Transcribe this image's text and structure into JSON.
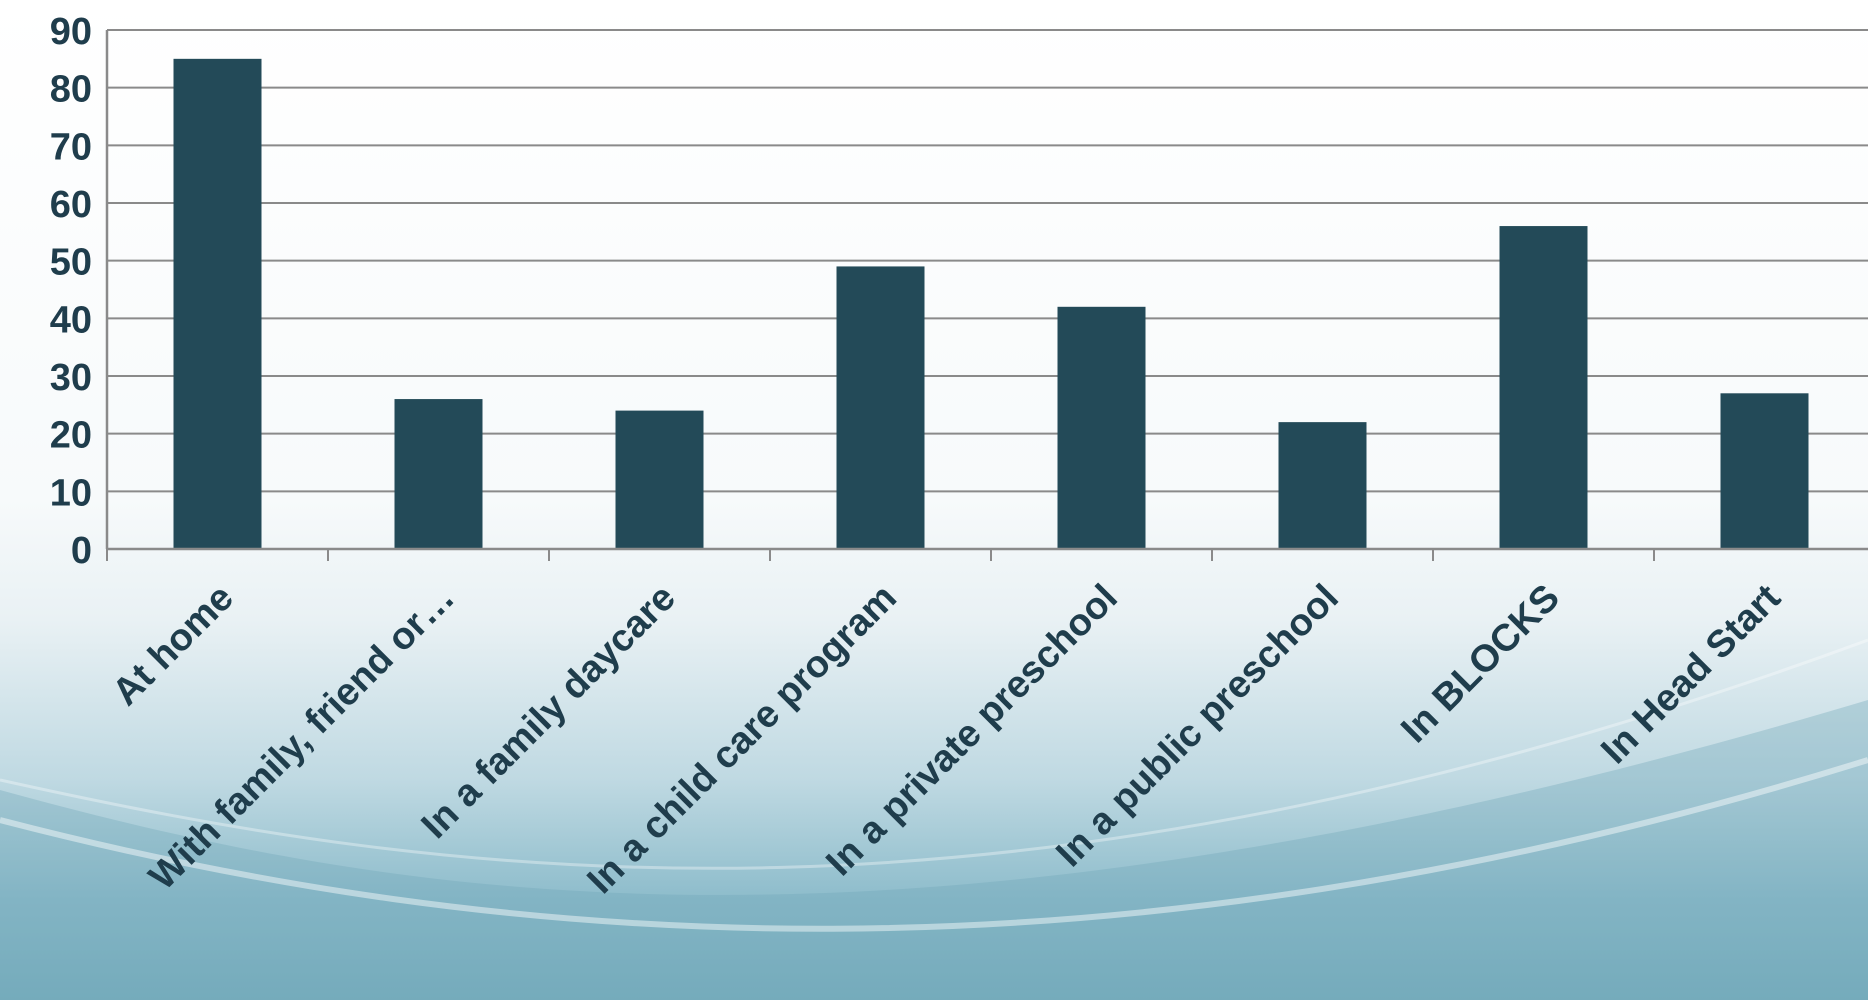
{
  "chart_data": {
    "type": "bar",
    "categories": [
      "At home",
      "With family, friend or…",
      "In a family daycare",
      "In a child care program",
      "In a private preschool",
      "In a public preschool",
      "In BLOCKS",
      "In Head Start"
    ],
    "values": [
      85,
      26,
      24,
      49,
      42,
      22,
      56,
      27
    ],
    "ylim": [
      0,
      90
    ],
    "yticks": [
      0,
      10,
      20,
      30,
      40,
      50,
      60,
      70,
      80,
      90
    ],
    "grid": true,
    "bar_color": "#234a58",
    "grid_color": "#8a8a8a",
    "text_color": "#1f3d4c"
  }
}
